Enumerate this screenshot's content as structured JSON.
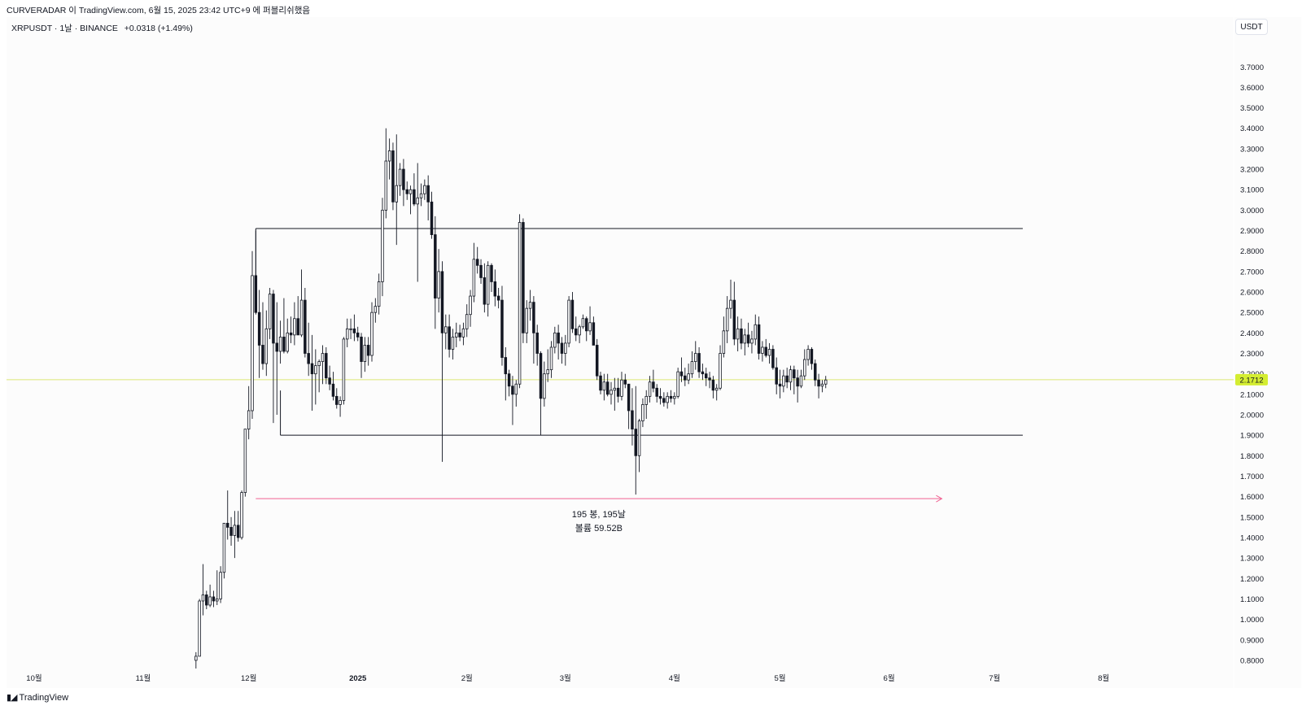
{
  "caption": "CURVERADAR 이 TradingView.com, 6월 15, 2025 23:42 UTC+9 에 퍼블리쉬했음",
  "legend": {
    "title": "XRPUSDT · 1날 · BINANCE",
    "change": "+0.0318 (+1.49%)"
  },
  "currency_button": "USDT",
  "brand": {
    "logo_icon": "tradingview-logo-icon",
    "name": "TradingView"
  },
  "colors": {
    "candle": "#131722",
    "range_box": "#131722",
    "measure_arrow": "#f06292",
    "price_line": "#dce775",
    "price_label_bg": "#d4ed31"
  },
  "chart_data": {
    "type": "candlestick",
    "symbol": "XRPUSDT",
    "interval": "1날",
    "exchange": "BINANCE",
    "y_axis": {
      "range": [
        0.76,
        3.86
      ],
      "ticks": [
        "0.8000",
        "0.9000",
        "1.0000",
        "1.1000",
        "1.2000",
        "1.3000",
        "1.4000",
        "1.5000",
        "1.6000",
        "1.7000",
        "1.8000",
        "1.9000",
        "2.0000",
        "2.1000",
        "2.2000",
        "2.3000",
        "2.4000",
        "2.5000",
        "2.6000",
        "2.7000",
        "2.8000",
        "2.9000",
        "3.0000",
        "3.1000",
        "3.2000",
        "3.3000",
        "3.4000",
        "3.5000",
        "3.6000",
        "3.7000"
      ]
    },
    "x_axis": {
      "start": "2024-09-25",
      "end": "2025-08-31",
      "ticks": [
        {
          "date": "2024-10-01",
          "label": "10월"
        },
        {
          "date": "2024-11-01",
          "label": "11월"
        },
        {
          "date": "2024-12-01",
          "label": "12월"
        },
        {
          "date": "2025-01-01",
          "label": "2025",
          "bold": true
        },
        {
          "date": "2025-02-01",
          "label": "2월"
        },
        {
          "date": "2025-03-01",
          "label": "3월"
        },
        {
          "date": "2025-04-01",
          "label": "4월"
        },
        {
          "date": "2025-05-01",
          "label": "5월"
        },
        {
          "date": "2025-06-01",
          "label": "6월"
        },
        {
          "date": "2025-07-01",
          "label": "7월"
        },
        {
          "date": "2025-08-01",
          "label": "8월"
        }
      ]
    },
    "current_price": "2.1712",
    "range_box": {
      "upper": 2.91,
      "lower": 1.9,
      "upper_start": "2024-12-03",
      "lower_start": "2024-12-10",
      "end": "2025-07-09"
    },
    "measure": {
      "start": "2024-12-03",
      "end": "2025-06-16",
      "price": 1.59,
      "label_bars": "195 봉, 195날",
      "label_volume": "볼륨 59.52B"
    },
    "candles_start": "2024-11-16",
    "candles": [
      [
        0.8,
        0.84,
        0.76,
        0.82
      ],
      [
        0.82,
        1.1,
        0.82,
        1.09
      ],
      [
        1.09,
        1.27,
        1.02,
        1.12
      ],
      [
        1.12,
        1.14,
        1.05,
        1.07
      ],
      [
        1.07,
        1.17,
        1.06,
        1.11
      ],
      [
        1.11,
        1.14,
        1.06,
        1.09
      ],
      [
        1.09,
        1.24,
        1.07,
        1.1
      ],
      [
        1.1,
        1.26,
        1.08,
        1.23
      ],
      [
        1.23,
        1.47,
        1.2,
        1.47
      ],
      [
        1.47,
        1.63,
        1.39,
        1.45
      ],
      [
        1.45,
        1.5,
        1.36,
        1.41
      ],
      [
        1.41,
        1.53,
        1.3,
        1.46
      ],
      [
        1.46,
        1.53,
        1.38,
        1.4
      ],
      [
        1.4,
        1.63,
        1.39,
        1.62
      ],
      [
        1.62,
        1.93,
        1.6,
        1.93
      ],
      [
        1.93,
        2.14,
        1.88,
        2.02
      ],
      [
        2.02,
        2.8,
        1.98,
        2.68
      ],
      [
        2.68,
        2.9,
        2.49,
        2.5
      ],
      [
        2.5,
        2.61,
        2.18,
        2.34
      ],
      [
        2.34,
        2.55,
        2.22,
        2.25
      ],
      [
        2.25,
        2.51,
        2.19,
        2.42
      ],
      [
        2.42,
        2.62,
        2.37,
        2.59
      ],
      [
        2.59,
        2.61,
        1.96,
        2.35
      ],
      [
        2.35,
        2.55,
        2.0,
        2.31
      ],
      [
        2.31,
        2.46,
        2.25,
        2.38
      ],
      [
        2.38,
        2.57,
        2.3,
        2.31
      ],
      [
        2.31,
        2.47,
        2.3,
        2.4
      ],
      [
        2.4,
        2.48,
        2.35,
        2.39
      ],
      [
        2.39,
        2.55,
        2.34,
        2.47
      ],
      [
        2.47,
        2.58,
        2.4,
        2.39
      ],
      [
        2.39,
        2.71,
        2.38,
        2.56
      ],
      [
        2.56,
        2.62,
        2.28,
        2.3
      ],
      [
        2.3,
        2.45,
        2.19,
        2.25
      ],
      [
        2.25,
        2.39,
        2.02,
        2.2
      ],
      [
        2.2,
        2.32,
        2.05,
        2.24
      ],
      [
        2.24,
        2.27,
        2.11,
        2.26
      ],
      [
        2.26,
        2.34,
        2.15,
        2.3
      ],
      [
        2.3,
        2.33,
        2.15,
        2.18
      ],
      [
        2.18,
        2.24,
        2.12,
        2.15
      ],
      [
        2.15,
        2.21,
        2.07,
        2.09
      ],
      [
        2.09,
        2.13,
        2.03,
        2.05
      ],
      [
        2.05,
        2.09,
        1.99,
        2.07
      ],
      [
        2.07,
        2.38,
        2.05,
        2.37
      ],
      [
        2.37,
        2.47,
        2.33,
        2.42
      ],
      [
        2.42,
        2.47,
        2.37,
        2.42
      ],
      [
        2.42,
        2.49,
        2.36,
        2.4
      ],
      [
        2.4,
        2.43,
        2.36,
        2.38
      ],
      [
        2.38,
        2.4,
        2.18,
        2.26
      ],
      [
        2.26,
        2.38,
        2.21,
        2.34
      ],
      [
        2.34,
        2.38,
        2.24,
        2.29
      ],
      [
        2.29,
        2.55,
        2.26,
        2.5
      ],
      [
        2.5,
        2.57,
        2.45,
        2.53
      ],
      [
        2.53,
        2.69,
        2.49,
        2.65
      ],
      [
        2.65,
        3.06,
        2.58,
        3.0
      ],
      [
        3.0,
        3.4,
        2.96,
        3.24
      ],
      [
        3.24,
        3.35,
        3.15,
        3.29
      ],
      [
        3.29,
        3.33,
        3.0,
        3.04
      ],
      [
        3.04,
        3.37,
        2.83,
        3.12
      ],
      [
        3.12,
        3.23,
        3.07,
        3.2
      ],
      [
        3.2,
        3.25,
        3.02,
        3.1
      ],
      [
        3.1,
        3.14,
        3.05,
        3.08
      ],
      [
        3.08,
        3.12,
        2.98,
        3.1
      ],
      [
        3.1,
        3.18,
        3.02,
        3.03
      ],
      [
        3.03,
        3.23,
        2.65,
        3.06
      ],
      [
        3.06,
        3.13,
        3.02,
        3.08
      ],
      [
        3.08,
        3.15,
        3.05,
        3.12
      ],
      [
        3.12,
        3.17,
        2.95,
        3.04
      ],
      [
        3.04,
        3.09,
        2.86,
        2.88
      ],
      [
        2.88,
        2.97,
        2.42,
        2.57
      ],
      [
        2.57,
        2.81,
        2.5,
        2.7
      ],
      [
        2.7,
        2.75,
        1.77,
        2.4
      ],
      [
        2.4,
        2.49,
        2.32,
        2.43
      ],
      [
        2.43,
        2.49,
        2.28,
        2.32
      ],
      [
        2.32,
        2.42,
        2.27,
        2.38
      ],
      [
        2.38,
        2.45,
        2.33,
        2.4
      ],
      [
        2.4,
        2.44,
        2.36,
        2.38
      ],
      [
        2.38,
        2.45,
        2.34,
        2.42
      ],
      [
        2.42,
        2.54,
        2.38,
        2.49
      ],
      [
        2.49,
        2.61,
        2.43,
        2.58
      ],
      [
        2.58,
        2.84,
        2.55,
        2.76
      ],
      [
        2.76,
        2.82,
        2.69,
        2.73
      ],
      [
        2.73,
        2.76,
        2.64,
        2.67
      ],
      [
        2.67,
        2.74,
        2.5,
        2.54
      ],
      [
        2.54,
        2.75,
        2.48,
        2.73
      ],
      [
        2.73,
        2.74,
        2.6,
        2.65
      ],
      [
        2.65,
        2.71,
        2.53,
        2.58
      ],
      [
        2.58,
        2.62,
        2.52,
        2.56
      ],
      [
        2.56,
        2.63,
        2.24,
        2.28
      ],
      [
        2.28,
        2.33,
        2.07,
        2.2
      ],
      [
        2.2,
        2.22,
        2.09,
        2.14
      ],
      [
        2.14,
        2.19,
        1.95,
        2.1
      ],
      [
        2.1,
        2.17,
        2.04,
        2.15
      ],
      [
        2.15,
        2.98,
        2.13,
        2.94
      ],
      [
        2.94,
        2.96,
        2.35,
        2.4
      ],
      [
        2.4,
        2.56,
        2.35,
        2.52
      ],
      [
        2.52,
        2.61,
        2.46,
        2.55
      ],
      [
        2.55,
        2.58,
        2.25,
        2.4
      ],
      [
        2.4,
        2.44,
        2.24,
        2.3
      ],
      [
        2.3,
        2.31,
        1.9,
        2.08
      ],
      [
        2.08,
        2.26,
        2.04,
        2.2
      ],
      [
        2.2,
        2.32,
        2.16,
        2.22
      ],
      [
        2.22,
        2.36,
        2.18,
        2.33
      ],
      [
        2.33,
        2.43,
        2.3,
        2.4
      ],
      [
        2.4,
        2.44,
        2.27,
        2.35
      ],
      [
        2.35,
        2.38,
        2.25,
        2.3
      ],
      [
        2.3,
        2.39,
        2.24,
        2.35
      ],
      [
        2.35,
        2.58,
        2.33,
        2.56
      ],
      [
        2.56,
        2.6,
        2.4,
        2.42
      ],
      [
        2.42,
        2.48,
        2.36,
        2.39
      ],
      [
        2.39,
        2.44,
        2.35,
        2.43
      ],
      [
        2.43,
        2.49,
        2.42,
        2.47
      ],
      [
        2.47,
        2.48,
        2.36,
        2.41
      ],
      [
        2.41,
        2.53,
        2.39,
        2.45
      ],
      [
        2.45,
        2.48,
        2.35,
        2.34
      ],
      [
        2.34,
        2.37,
        2.17,
        2.19
      ],
      [
        2.19,
        2.21,
        2.1,
        2.12
      ],
      [
        2.12,
        2.2,
        2.07,
        2.16
      ],
      [
        2.16,
        2.2,
        2.09,
        2.1
      ],
      [
        2.1,
        2.16,
        2.05,
        2.12
      ],
      [
        2.12,
        2.18,
        2.02,
        2.13
      ],
      [
        2.13,
        2.18,
        2.06,
        2.09
      ],
      [
        2.09,
        2.21,
        2.07,
        2.17
      ],
      [
        2.17,
        2.2,
        2.13,
        2.15
      ],
      [
        2.15,
        2.15,
        1.93,
        2.02
      ],
      [
        2.02,
        2.13,
        1.85,
        1.93
      ],
      [
        1.93,
        2.14,
        1.61,
        1.8
      ],
      [
        1.8,
        1.98,
        1.72,
        1.97
      ],
      [
        1.97,
        2.08,
        1.94,
        2.05
      ],
      [
        2.05,
        2.12,
        1.98,
        2.09
      ],
      [
        2.09,
        2.19,
        2.06,
        2.16
      ],
      [
        2.16,
        2.22,
        2.11,
        2.13
      ],
      [
        2.13,
        2.15,
        2.06,
        2.09
      ],
      [
        2.09,
        2.13,
        2.05,
        2.08
      ],
      [
        2.08,
        2.11,
        2.04,
        2.06
      ],
      [
        2.06,
        2.11,
        2.03,
        2.09
      ],
      [
        2.09,
        2.12,
        2.06,
        2.08
      ],
      [
        2.08,
        2.11,
        2.05,
        2.09
      ],
      [
        2.09,
        2.23,
        2.08,
        2.21
      ],
      [
        2.21,
        2.28,
        2.16,
        2.19
      ],
      [
        2.19,
        2.23,
        2.14,
        2.17
      ],
      [
        2.17,
        2.25,
        2.15,
        2.2
      ],
      [
        2.2,
        2.31,
        2.18,
        2.26
      ],
      [
        2.26,
        2.36,
        2.22,
        2.3
      ],
      [
        2.3,
        2.33,
        2.18,
        2.21
      ],
      [
        2.21,
        2.25,
        2.17,
        2.2
      ],
      [
        2.2,
        2.23,
        2.14,
        2.18
      ],
      [
        2.18,
        2.21,
        2.13,
        2.17
      ],
      [
        2.17,
        2.19,
        2.08,
        2.12
      ],
      [
        2.12,
        2.15,
        2.07,
        2.13
      ],
      [
        2.13,
        2.34,
        2.12,
        2.3
      ],
      [
        2.3,
        2.48,
        2.28,
        2.41
      ],
      [
        2.41,
        2.58,
        2.35,
        2.52
      ],
      [
        2.52,
        2.66,
        2.47,
        2.56
      ],
      [
        2.56,
        2.65,
        2.34,
        2.37
      ],
      [
        2.37,
        2.48,
        2.31,
        2.42
      ],
      [
        2.42,
        2.47,
        2.32,
        2.35
      ],
      [
        2.35,
        2.42,
        2.29,
        2.39
      ],
      [
        2.39,
        2.45,
        2.33,
        2.35
      ],
      [
        2.35,
        2.41,
        2.3,
        2.37
      ],
      [
        2.37,
        2.49,
        2.34,
        2.44
      ],
      [
        2.44,
        2.48,
        2.27,
        2.3
      ],
      [
        2.3,
        2.36,
        2.26,
        2.33
      ],
      [
        2.33,
        2.37,
        2.28,
        2.29
      ],
      [
        2.29,
        2.35,
        2.25,
        2.32
      ],
      [
        2.32,
        2.34,
        2.22,
        2.23
      ],
      [
        2.23,
        2.28,
        2.1,
        2.15
      ],
      [
        2.15,
        2.22,
        2.08,
        2.14
      ],
      [
        2.14,
        2.22,
        2.11,
        2.19
      ],
      [
        2.19,
        2.23,
        2.13,
        2.16
      ],
      [
        2.16,
        2.24,
        2.12,
        2.22
      ],
      [
        2.22,
        2.24,
        2.1,
        2.18
      ],
      [
        2.18,
        2.22,
        2.06,
        2.14
      ],
      [
        2.14,
        2.22,
        2.13,
        2.19
      ],
      [
        2.19,
        2.32,
        2.17,
        2.27
      ],
      [
        2.27,
        2.34,
        2.24,
        2.32
      ],
      [
        2.32,
        2.33,
        2.22,
        2.25
      ],
      [
        2.25,
        2.27,
        2.14,
        2.17
      ],
      [
        2.17,
        2.2,
        2.08,
        2.14
      ],
      [
        2.14,
        2.17,
        2.11,
        2.15
      ],
      [
        2.15,
        2.19,
        2.13,
        2.17
      ]
    ]
  }
}
